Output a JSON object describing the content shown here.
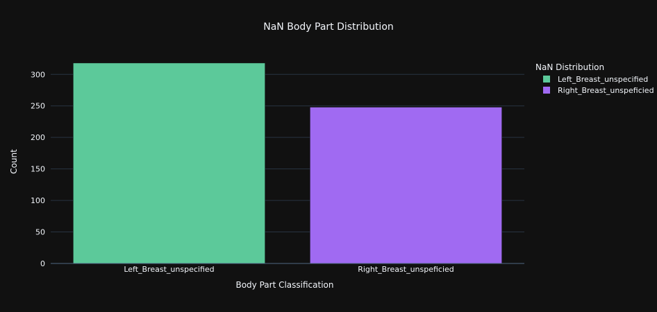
{
  "chart_data": {
    "type": "bar",
    "title": "NaN Body Part Distribution",
    "xlabel": "Body Part Classification",
    "ylabel": "Count",
    "categories": [
      "Left_Breast_unspecified",
      "Right_Breast_unspeficied"
    ],
    "values": [
      318,
      248
    ],
    "ylim": [
      0,
      330
    ],
    "yticks": [
      0,
      50,
      100,
      150,
      200,
      250,
      300
    ],
    "grid": true,
    "legend": {
      "title": "NaN Distribution",
      "placement": "top-right",
      "entries": [
        "Left_Breast_unspecified",
        "Right_Breast_unspeficied"
      ]
    },
    "colors": [
      "#5cc99a",
      "#a06af2"
    ],
    "background": "#111111",
    "text_color": "#f2f5fa",
    "grid_color": "#283442"
  }
}
